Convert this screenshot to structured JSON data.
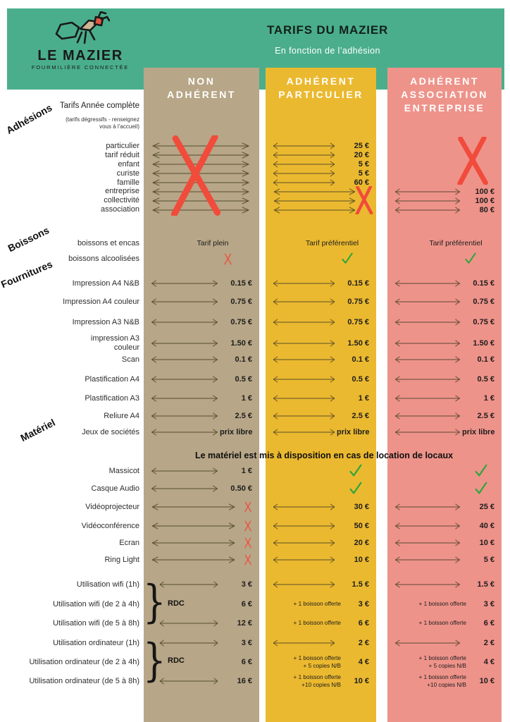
{
  "colors": {
    "green": "#4aae8c",
    "tan": "#b7a687",
    "yellow": "#ebb92f",
    "salmon": "#ee938a",
    "cross": "#f14b3c",
    "check": "#2ca53e",
    "arrow": "#4c4228"
  },
  "header": {
    "logo": {
      "name": "LE MAZIER",
      "tagline": "FOURMILIÈRE CONNECTÉE"
    },
    "title": "TARIFS DU MAZIER",
    "subtitle": "En fonction de l’adhésion"
  },
  "columns": [
    {
      "id": "non-adherent",
      "label_lines": [
        "NON",
        "ADHÉRENT"
      ],
      "color": "#b7a687"
    },
    {
      "id": "adherent-particulier",
      "label_lines": [
        "ADHÉRENT",
        "PARTICULIER"
      ],
      "color": "#ebb92f"
    },
    {
      "id": "adherent-association",
      "label_lines": [
        "ADHÉRENT",
        "ASSOCIATION",
        "ENTREPRISE"
      ],
      "color": "#ee938a"
    }
  ],
  "sections": {
    "adhesions": {
      "category": "Adhésions",
      "heading": "Tarifs Année complète",
      "note1": "(tarifs dégressifs - renseignez",
      "note2": "vous à l’accueil)",
      "crossed_out": {
        "non_adherent": "toutes adhésions",
        "particulier": "entreprise / collectivité / association",
        "association": "particulier à famille"
      },
      "rows": [
        {
          "label": "particulier",
          "cells": [
            {
              "t": "a"
            },
            {
              "t": "ap",
              "v": "25 €"
            },
            {
              "t": "none"
            }
          ]
        },
        {
          "label": "tarif réduit",
          "cells": [
            {
              "t": "a"
            },
            {
              "t": "ap",
              "v": "20 €"
            },
            {
              "t": "none"
            }
          ]
        },
        {
          "label": "enfant",
          "cells": [
            {
              "t": "a"
            },
            {
              "t": "ap",
              "v": "5 €"
            },
            {
              "t": "none"
            }
          ]
        },
        {
          "label": "curiste",
          "cells": [
            {
              "t": "a"
            },
            {
              "t": "ap",
              "v": "5 €"
            },
            {
              "t": "none"
            }
          ]
        },
        {
          "label": "famille",
          "cells": [
            {
              "t": "a"
            },
            {
              "t": "ap",
              "v": "60 €"
            },
            {
              "t": "none"
            }
          ]
        },
        {
          "label": "entreprise",
          "cells": [
            {
              "t": "a"
            },
            {
              "t": "a"
            },
            {
              "t": "ap",
              "v": "100 €"
            }
          ]
        },
        {
          "label": "collectivité",
          "cells": [
            {
              "t": "a"
            },
            {
              "t": "a"
            },
            {
              "t": "ap",
              "v": "100 €"
            }
          ]
        },
        {
          "label": "association",
          "cells": [
            {
              "t": "a"
            },
            {
              "t": "a"
            },
            {
              "t": "ap",
              "v": "80 €"
            }
          ]
        }
      ]
    },
    "boissons": {
      "category": "Boissons",
      "rows": [
        {
          "label": "boissons et encas",
          "cells": [
            {
              "t": "text",
              "v": "Tarif  plein"
            },
            {
              "t": "text",
              "v": "Tarif préférentiel"
            },
            {
              "t": "text",
              "v": "Tarif préférentiel"
            }
          ]
        },
        {
          "label": "boissons alcoolisées",
          "cells": [
            {
              "t": "cross"
            },
            {
              "t": "check"
            },
            {
              "t": "check"
            }
          ]
        }
      ]
    },
    "fournitures": {
      "category": "Fournitures",
      "rows": [
        {
          "label": "Impression A4 N&B",
          "cells": [
            {
              "t": "ap",
              "v": "0.15 €"
            },
            {
              "t": "ap",
              "v": "0.15 €"
            },
            {
              "t": "ap",
              "v": "0.15 €"
            }
          ]
        },
        {
          "label": "Impression A4 couleur",
          "cells": [
            {
              "t": "ap",
              "v": "0.75 €"
            },
            {
              "t": "ap",
              "v": "0.75 €"
            },
            {
              "t": "ap",
              "v": "0.75 €"
            }
          ]
        },
        {
          "label": "Impression A3 N&B",
          "cells": [
            {
              "t": "ap",
              "v": "0.75 €"
            },
            {
              "t": "ap",
              "v": "0.75 €"
            },
            {
              "t": "ap",
              "v": "0.75 €"
            }
          ]
        },
        {
          "label": "impression A3\ncouleur",
          "cells": [
            {
              "t": "ap",
              "v": "1.50 €"
            },
            {
              "t": "ap",
              "v": "1.50 €"
            },
            {
              "t": "ap",
              "v": "1.50 €"
            }
          ]
        },
        {
          "label": "Scan",
          "cells": [
            {
              "t": "ap",
              "v": "0.1 €"
            },
            {
              "t": "ap",
              "v": "0.1 €"
            },
            {
              "t": "ap",
              "v": "0.1 €"
            }
          ]
        },
        {
          "label": "Plastification A4",
          "cells": [
            {
              "t": "ap",
              "v": "0.5 €"
            },
            {
              "t": "ap",
              "v": "0.5 €"
            },
            {
              "t": "ap",
              "v": "0.5 €"
            }
          ]
        },
        {
          "label": "Plastification A3",
          "cells": [
            {
              "t": "ap",
              "v": "1 €"
            },
            {
              "t": "ap",
              "v": "1 €"
            },
            {
              "t": "ap",
              "v": "1 €"
            }
          ]
        },
        {
          "label": "Reliure A4",
          "cells": [
            {
              "t": "ap",
              "v": "2.5 €"
            },
            {
              "t": "ap",
              "v": "2.5 €"
            },
            {
              "t": "ap",
              "v": "2.5 €"
            }
          ]
        },
        {
          "label": "Jeux de sociétés",
          "cells": [
            {
              "t": "ap",
              "v": "prix libre"
            },
            {
              "t": "ap",
              "v": "prix libre"
            },
            {
              "t": "ap",
              "v": "prix libre"
            }
          ]
        }
      ]
    },
    "materiel": {
      "category": "Matériel",
      "banner": "Le matériel est mis à disposition en cas de location de locaux",
      "rows": [
        {
          "label": "Massicot",
          "cells": [
            {
              "t": "ap",
              "v": "1 €"
            },
            {
              "t": "mk"
            },
            {
              "t": "mk"
            }
          ]
        },
        {
          "label": "Casque Audio",
          "cells": [
            {
              "t": "ap",
              "v": "0.50 €"
            },
            {
              "t": "mk"
            },
            {
              "t": "mk"
            }
          ]
        },
        {
          "label": "Vidéoprojecteur",
          "cells": [
            {
              "t": "ax"
            },
            {
              "t": "ap",
              "v": "30 €"
            },
            {
              "t": "ap",
              "v": "25 €"
            }
          ]
        },
        {
          "label": "Vidéoconférence",
          "cells": [
            {
              "t": "ax"
            },
            {
              "t": "ap",
              "v": "50 €"
            },
            {
              "t": "ap",
              "v": "40 €"
            }
          ]
        },
        {
          "label": "Ecran",
          "cells": [
            {
              "t": "ax"
            },
            {
              "t": "ap",
              "v": "20 €"
            },
            {
              "t": "ap",
              "v": "10 €"
            }
          ]
        },
        {
          "label": "Ring Light",
          "cells": [
            {
              "t": "ax"
            },
            {
              "t": "ap",
              "v": "10 €"
            },
            {
              "t": "ap",
              "v": "5 €"
            }
          ]
        }
      ]
    },
    "wifi": {
      "rdc_label": "RDC",
      "rows": [
        {
          "label": "Utilisation wifi  (1h)",
          "cells": [
            {
              "t": "ap",
              "v": "3 €"
            },
            {
              "t": "ap",
              "v": "1.5 €"
            },
            {
              "t": "ap",
              "v": "1.5 €"
            }
          ]
        },
        {
          "label": "Utilisation wifi (de 2 à 4h)",
          "cells": [
            {
              "t": "p",
              "v": "6 €"
            },
            {
              "t": "np",
              "n": [
                "+ 1 boisson offerte"
              ],
              "v": "3 €"
            },
            {
              "t": "np",
              "n": [
                "+ 1 boisson offerte"
              ],
              "v": "3 €"
            }
          ]
        },
        {
          "label": "Utilisation wifi (de 5 à 8h)",
          "cells": [
            {
              "t": "ap",
              "v": "12 €"
            },
            {
              "t": "np",
              "n": [
                "+ 1 boisson offerte"
              ],
              "v": "6 €"
            },
            {
              "t": "np",
              "n": [
                "+ 1 boisson offerte"
              ],
              "v": "6 €"
            }
          ]
        }
      ]
    },
    "ordinateur": {
      "rdc_label": "RDC",
      "rows": [
        {
          "label": "Utilisation ordinateur (1h)",
          "cells": [
            {
              "t": "ap",
              "v": "3 €"
            },
            {
              "t": "ap",
              "v": "2 €"
            },
            {
              "t": "ap",
              "v": "2 €"
            }
          ]
        },
        {
          "label": "Utilisation ordinateur (de 2 à 4h)",
          "cells": [
            {
              "t": "p",
              "v": "6 €"
            },
            {
              "t": "np",
              "n": [
                "+ 1 boisson offerte",
                "+ 5 copies N/B"
              ],
              "v": "4 €"
            },
            {
              "t": "np",
              "n": [
                "+ 1 boisson offerte",
                "+ 5 copies N/B"
              ],
              "v": "4 €"
            }
          ]
        },
        {
          "label": "Utilisation ordinateur (de 5 à 8h)",
          "cells": [
            {
              "t": "ap",
              "v": "16 €"
            },
            {
              "t": "np",
              "n": [
                "+ 1 boisson offerte",
                "+10 copies N/B"
              ],
              "v": "10 €"
            },
            {
              "t": "np",
              "n": [
                "+ 1 boisson offerte",
                "+10 copies N/B"
              ],
              "v": "10 €"
            }
          ]
        }
      ]
    }
  }
}
